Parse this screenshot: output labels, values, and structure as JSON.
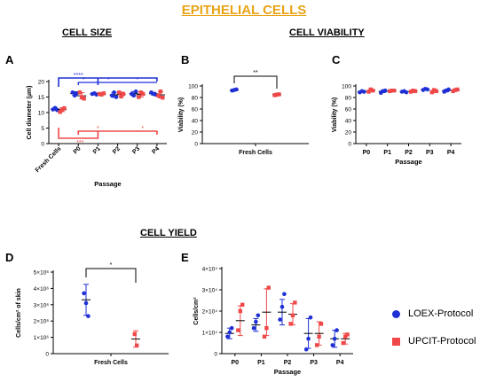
{
  "page_title": "EPITHELIAL CELLS",
  "sections": {
    "cell_size": "CELL SIZE",
    "cell_viability": "CELL VIABILITY",
    "cell_yield": "CELL YIELD"
  },
  "legend": [
    {
      "label": "LOEX-Protocol",
      "color": "#1f2fd6",
      "marker": "circle"
    },
    {
      "label": "UPCIT-Protocol",
      "color": "#f04848",
      "marker": "square"
    }
  ],
  "colors": {
    "loex": "#1f2fd6",
    "upcit": "#f04848"
  },
  "chart_data": [
    {
      "panel": "A",
      "type": "scatter",
      "categories": [
        "Fresh Cells",
        "P0",
        "P1",
        "P2",
        "P3",
        "P4"
      ],
      "xlabel": "Passage",
      "ylabel": "Cell diameter (µm)",
      "ylim": [
        0,
        20
      ],
      "yticks": [
        "0",
        "5",
        "10",
        "15",
        "20"
      ],
      "series": [
        {
          "name": "LOEX-Protocol",
          "points": [
            [
              11,
              11.5,
              10.8
            ],
            [
              16.5,
              15.5,
              16.2
            ],
            [
              16,
              16.2,
              15.8
            ],
            [
              15.5,
              16.5,
              15
            ],
            [
              16,
              15.5,
              16.8
            ],
            [
              16.5,
              16,
              15.8
            ]
          ],
          "mean": [
            11.1,
            16.1,
            16,
            15.7,
            16.1,
            16.1
          ],
          "err": [
            0.4,
            0.6,
            0.3,
            0.8,
            0.7,
            0.4
          ]
        },
        {
          "name": "UPCIT-Protocol",
          "points": [
            [
              10.2,
              11,
              11.4
            ],
            [
              16.5,
              15,
              14.5
            ],
            [
              16,
              15.8,
              16.2
            ],
            [
              16.5,
              15.2,
              16
            ],
            [
              15,
              16.5,
              16
            ],
            [
              15.5,
              16.8,
              14.8
            ]
          ],
          "mean": [
            10.9,
            15.4,
            16,
            15.9,
            15.8,
            15.7
          ],
          "err": [
            0.6,
            1,
            0.3,
            0.7,
            0.8,
            1
          ]
        }
      ],
      "annotations": [
        {
          "text": "****",
          "color": "#1f2fd6"
        },
        {
          "text": "*",
          "color": "#1f2fd6"
        },
        {
          "text": "*",
          "color": "#1f2fd6"
        },
        {
          "text": "*",
          "color": "#1f2fd6"
        },
        {
          "text": "***",
          "color": "#f04848"
        },
        {
          "text": "*",
          "color": "#f04848"
        },
        {
          "text": "*",
          "color": "#f04848"
        }
      ]
    },
    {
      "panel": "B",
      "type": "scatter",
      "categories": [
        "Fresh Cells"
      ],
      "xlabel": "",
      "ylabel": "Viability (%)",
      "ylim": [
        0,
        100
      ],
      "yticks": [
        "0",
        "20",
        "40",
        "60",
        "80",
        "100"
      ],
      "series": [
        {
          "name": "LOEX-Protocol",
          "points": [
            [
              92,
              93,
              94
            ]
          ],
          "mean": [
            93
          ],
          "err": [
            1.5
          ]
        },
        {
          "name": "UPCIT-Protocol",
          "points": [
            [
              84,
              85,
              85.5
            ]
          ],
          "mean": [
            85
          ],
          "err": [
            0.8
          ]
        }
      ],
      "annotations": [
        {
          "text": "**"
        }
      ]
    },
    {
      "panel": "C",
      "type": "scatter",
      "categories": [
        "P0",
        "P1",
        "P2",
        "P3",
        "P4"
      ],
      "xlabel": "Passage",
      "ylabel": "Viability (%)",
      "ylim": [
        0,
        100
      ],
      "yticks": [
        "0",
        "20",
        "40",
        "60",
        "80",
        "100"
      ],
      "series": [
        {
          "name": "LOEX-Protocol",
          "points": [
            [
              89,
              91,
              90
            ],
            [
              88,
              91,
              92
            ],
            [
              90,
              91,
              89
            ],
            [
              93,
              95,
              94
            ],
            [
              90,
              92,
              94
            ]
          ],
          "mean": [
            90,
            90.5,
            90,
            94,
            92
          ],
          "err": [
            1.5,
            2,
            1,
            1,
            2
          ]
        },
        {
          "name": "UPCIT-Protocol",
          "points": [
            [
              90,
              94,
              92
            ],
            [
              91,
              92,
              92
            ],
            [
              90,
              92,
              91
            ],
            [
              89,
              93,
              91
            ],
            [
              91,
              93,
              94
            ]
          ],
          "mean": [
            92,
            91.5,
            91,
            91,
            92.5
          ],
          "err": [
            2,
            0.6,
            1,
            2,
            1.5
          ]
        }
      ]
    },
    {
      "panel": "D",
      "type": "scatter",
      "categories": [
        "Fresh Cells"
      ],
      "xlabel": "",
      "ylabel": "Cells/cm² of skin",
      "ylim": [
        0,
        5000000
      ],
      "yticks": [
        "0",
        "1×10⁶",
        "2×10⁶",
        "3×10⁶",
        "4×10⁶",
        "5×10⁶"
      ],
      "series": [
        {
          "name": "LOEX-Protocol",
          "points": [
            [
              3700000,
              3100000,
              2300000
            ]
          ],
          "mean": [
            3300000
          ],
          "err": [
            950000
          ]
        },
        {
          "name": "UPCIT-Protocol",
          "points": [
            [
              1200000,
              500000
            ]
          ],
          "mean": [
            900000
          ],
          "err": [
            500000
          ]
        }
      ],
      "annotations": [
        {
          "text": "*"
        }
      ]
    },
    {
      "panel": "E",
      "type": "scatter",
      "categories": [
        "P0",
        "P1",
        "P2",
        "P3",
        "P4"
      ],
      "xlabel": "Passage",
      "ylabel": "Cells/cm²",
      "ylim": [
        0,
        40000
      ],
      "yticks": [
        "0",
        "1×10⁴",
        "2×10⁴",
        "3×10⁴",
        "4×10⁴"
      ],
      "series": [
        {
          "name": "LOEX-Protocol",
          "points": [
            [
              8000,
              10000,
              12000
            ],
            [
              12000,
              15000,
              18000
            ],
            [
              16000,
              22000,
              28000
            ],
            [
              2000,
              7000,
              17000
            ],
            [
              4000,
              7000,
              11000
            ]
          ],
          "mean": [
            9500,
            13500,
            19500,
            9500,
            7000
          ],
          "err": [
            2500,
            3000,
            6000,
            7000,
            4000
          ]
        },
        {
          "name": "UPCIT-Protocol",
          "points": [
            [
              11000,
              20000,
              23000
            ],
            [
              8000,
              12000,
              31000
            ],
            [
              14000,
              18000,
              24000
            ],
            [
              4000,
              8000,
              14000
            ],
            [
              5000,
              8000,
              9000
            ]
          ],
          "mean": [
            15500,
            19500,
            18500,
            9500,
            7000
          ],
          "err": [
            7000,
            11000,
            5000,
            5500,
            2500
          ]
        }
      ]
    }
  ]
}
